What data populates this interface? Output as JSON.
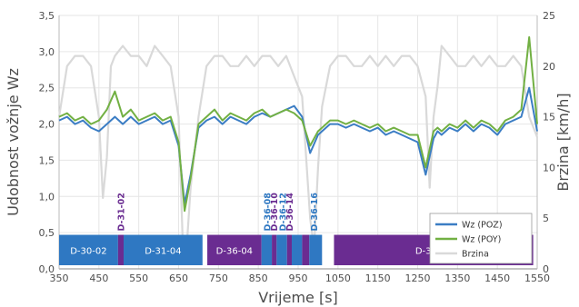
{
  "chart_data": {
    "type": "line",
    "title": "",
    "xlabel": "Vrijeme [s]",
    "ylabel": "Udobnost vožnje Wz",
    "y2label": "Brzina [km/h]",
    "xlim": [
      350,
      1550
    ],
    "ylim": [
      0,
      3.5
    ],
    "y2lim": [
      0,
      25
    ],
    "x_ticks": [
      350,
      450,
      550,
      650,
      750,
      850,
      950,
      1050,
      1150,
      1250,
      1350,
      1450,
      1550
    ],
    "y_ticks": [
      0,
      0.5,
      1,
      1.5,
      2,
      2.5,
      3,
      3.5
    ],
    "y_tick_labels": [
      "0,0",
      "0,5",
      "1,0",
      "1,5",
      "2,0",
      "2,5",
      "3,0",
      "3,5"
    ],
    "y2_ticks": [
      0,
      5,
      10,
      15,
      20,
      25
    ],
    "grid": true,
    "legend_position": "bottom-right",
    "colors": {
      "poz": "#3b7dc4",
      "poy": "#72b043",
      "brzina": "#d9d9d9",
      "seg_blue": "#2f78c2",
      "seg_purple": "#6a2c91"
    },
    "series": [
      {
        "name": "Wz (POZ)",
        "axis": "left",
        "x": [
          350,
          370,
          390,
          410,
          430,
          450,
          470,
          490,
          510,
          530,
          550,
          570,
          590,
          610,
          630,
          650,
          665,
          680,
          700,
          720,
          740,
          760,
          780,
          800,
          820,
          840,
          860,
          880,
          900,
          920,
          940,
          960,
          980,
          1000,
          1010,
          1030,
          1050,
          1070,
          1090,
          1110,
          1130,
          1150,
          1170,
          1190,
          1210,
          1230,
          1250,
          1270,
          1290,
          1300,
          1310,
          1330,
          1350,
          1370,
          1390,
          1410,
          1430,
          1450,
          1470,
          1490,
          1510,
          1530,
          1550
        ],
        "values": [
          2.05,
          2.1,
          2.0,
          2.05,
          1.95,
          1.9,
          2.0,
          2.1,
          2.0,
          2.1,
          2.0,
          2.05,
          2.1,
          2.0,
          2.05,
          1.7,
          0.9,
          1.3,
          1.95,
          2.05,
          2.1,
          2.0,
          2.1,
          2.05,
          2.0,
          2.1,
          2.15,
          2.1,
          2.15,
          2.2,
          2.25,
          2.1,
          1.6,
          1.85,
          1.9,
          2.0,
          2.0,
          1.95,
          2.0,
          1.95,
          1.9,
          1.95,
          1.85,
          1.9,
          1.85,
          1.8,
          1.75,
          1.3,
          1.8,
          1.9,
          1.85,
          1.95,
          1.9,
          2.0,
          1.9,
          2.0,
          1.95,
          1.85,
          2.0,
          2.05,
          2.1,
          2.5,
          1.9
        ]
      },
      {
        "name": "Wz (POY)",
        "axis": "left",
        "x": [
          350,
          370,
          390,
          410,
          430,
          450,
          470,
          490,
          510,
          530,
          550,
          570,
          590,
          610,
          630,
          650,
          665,
          680,
          700,
          720,
          740,
          760,
          780,
          800,
          820,
          840,
          860,
          880,
          900,
          920,
          940,
          960,
          980,
          1000,
          1010,
          1030,
          1050,
          1070,
          1090,
          1110,
          1130,
          1150,
          1170,
          1190,
          1210,
          1230,
          1250,
          1270,
          1290,
          1300,
          1310,
          1330,
          1350,
          1370,
          1390,
          1410,
          1430,
          1450,
          1470,
          1490,
          1510,
          1530,
          1550
        ],
        "values": [
          2.1,
          2.15,
          2.05,
          2.1,
          2.0,
          2.05,
          2.2,
          2.45,
          2.1,
          2.2,
          2.05,
          2.1,
          2.15,
          2.05,
          2.1,
          1.75,
          0.8,
          1.25,
          2.0,
          2.1,
          2.2,
          2.05,
          2.15,
          2.1,
          2.05,
          2.15,
          2.2,
          2.1,
          2.15,
          2.2,
          2.15,
          2.05,
          1.7,
          1.9,
          1.95,
          2.05,
          2.05,
          2.0,
          2.05,
          2.0,
          1.95,
          2.0,
          1.9,
          1.95,
          1.9,
          1.85,
          1.85,
          1.4,
          1.9,
          1.95,
          1.9,
          2.0,
          1.95,
          2.05,
          1.95,
          2.05,
          2.0,
          1.9,
          2.05,
          2.1,
          2.2,
          3.2,
          2.0
        ]
      },
      {
        "name": "Brzina",
        "axis": "right",
        "x": [
          350,
          370,
          390,
          410,
          430,
          450,
          460,
          470,
          480,
          490,
          510,
          530,
          550,
          570,
          590,
          610,
          630,
          650,
          660,
          670,
          680,
          700,
          720,
          740,
          760,
          780,
          800,
          820,
          840,
          860,
          880,
          900,
          920,
          940,
          960,
          980,
          990,
          1000,
          1010,
          1030,
          1050,
          1070,
          1090,
          1110,
          1130,
          1150,
          1170,
          1190,
          1210,
          1230,
          1250,
          1270,
          1280,
          1290,
          1300,
          1310,
          1330,
          1350,
          1370,
          1390,
          1410,
          1430,
          1450,
          1470,
          1490,
          1510,
          1530,
          1550
        ],
        "values": [
          15,
          20,
          21,
          21,
          20,
          15,
          7,
          11,
          20,
          21,
          22,
          21,
          21,
          20,
          22,
          21,
          20,
          15,
          3,
          2,
          8,
          15,
          20,
          21,
          21,
          20,
          20,
          21,
          20,
          21,
          21,
          20,
          21,
          19,
          17,
          5,
          2,
          10,
          16,
          20,
          21,
          21,
          20,
          20,
          21,
          20,
          21,
          20,
          21,
          21,
          20,
          17,
          8,
          15,
          18,
          22,
          21,
          20,
          20,
          21,
          20,
          21,
          20,
          20,
          21,
          20,
          15,
          13
        ]
      }
    ],
    "segments": [
      {
        "label": "D-30-02",
        "x0": 350,
        "x1": 498,
        "color": "blue"
      },
      {
        "label": "",
        "x0": 498,
        "x1": 512,
        "color": "purple"
      },
      {
        "label": "D-31-04",
        "x0": 512,
        "x1": 710,
        "color": "blue"
      },
      {
        "label": "D-36-04",
        "x0": 722,
        "x1": 858,
        "color": "purple"
      },
      {
        "label": "",
        "x0": 858,
        "x1": 884,
        "color": "blue"
      },
      {
        "label": "",
        "x0": 884,
        "x1": 896,
        "color": "purple"
      },
      {
        "label": "",
        "x0": 896,
        "x1": 922,
        "color": "blue"
      },
      {
        "label": "",
        "x0": 922,
        "x1": 934,
        "color": "purple"
      },
      {
        "label": "",
        "x0": 934,
        "x1": 960,
        "color": "blue"
      },
      {
        "label": "",
        "x0": 960,
        "x1": 978,
        "color": "purple"
      },
      {
        "label": "",
        "x0": 978,
        "x1": 1010,
        "color": "blue"
      },
      {
        "label": "D-35-02",
        "x0": 1040,
        "x1": 1540,
        "color": "purple"
      }
    ],
    "vertical_labels": [
      {
        "label": "D-31-02",
        "x": 505,
        "color": "purple"
      },
      {
        "label": "D-36-08",
        "x": 872,
        "color": "blue"
      },
      {
        "label": "D-36-10",
        "x": 890,
        "color": "purple"
      },
      {
        "label": "D-36-12",
        "x": 911,
        "color": "blue"
      },
      {
        "label": "D-36-14",
        "x": 928,
        "color": "purple"
      },
      {
        "label": "D-36-16",
        "x": 990,
        "color": "blue"
      }
    ]
  }
}
